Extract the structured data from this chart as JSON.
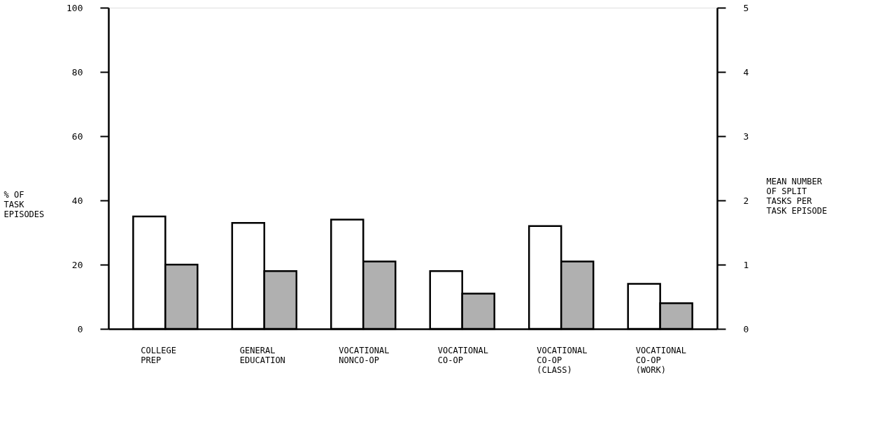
{
  "chart_data": {
    "type": "bar",
    "categories": [
      "COLLEGE\nPREP",
      "GENERAL\nEDUCATION",
      "VOCATIONAL\nNONCO-OP",
      "VOCATIONAL\nCO-OP",
      "VOCATIONAL\nCO-OP\n(CLASS)",
      "VOCATIONAL\nCO-OP\n(WORK)"
    ],
    "series": [
      {
        "color": "#ffffff",
        "values": [
          35,
          33,
          34,
          18,
          32,
          14
        ]
      },
      {
        "color": "#b0b0b0",
        "axis": "y2",
        "values": [
          1.0,
          0.9,
          1.05,
          0.55,
          1.05,
          0.4
        ]
      }
    ],
    "ylabel": "% OF\nTASK\nEPISODES",
    "y2label": "MEAN NUMBER\nOF SPLIT\nTASKS PER\nTASK EPISODE",
    "ylim": [
      0,
      100
    ],
    "yticks": [
      0,
      20,
      40,
      60,
      80,
      100
    ],
    "y2lim": [
      0,
      5
    ],
    "y2ticks": [
      0,
      1,
      2,
      3,
      4,
      5
    ],
    "grid": false
  }
}
